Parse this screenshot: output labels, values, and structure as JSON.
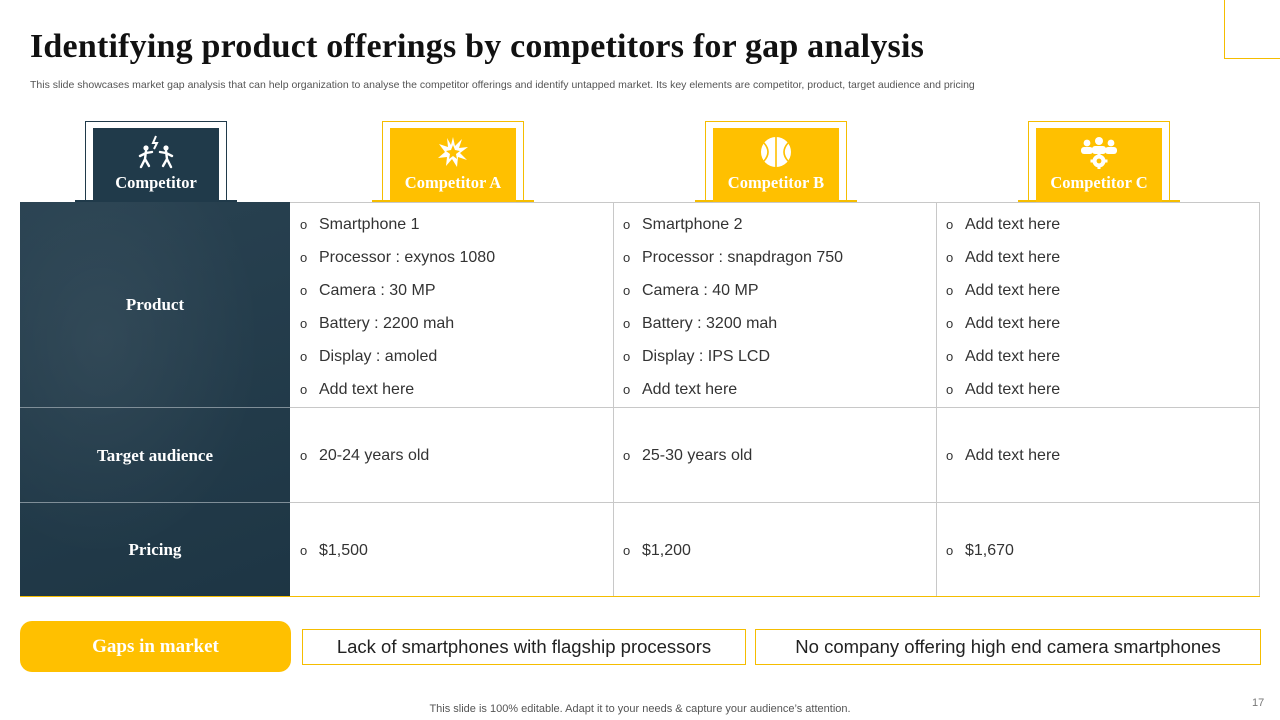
{
  "title": "Identifying product offerings by competitors  for gap analysis",
  "subtitle": "This slide showcases market gap analysis that can help organization to analyse the competitor offerings and identify untapped market. Its key elements are competitor, product, target audience and pricing",
  "headers": {
    "first": "Competitor",
    "a": "Competitor A",
    "b": "Competitor B",
    "c": "Competitor C"
  },
  "icons": {
    "first": "people-fighting-icon",
    "a": "splash-icon",
    "b": "basketball-icon",
    "c": "team-gear-icon"
  },
  "rows": {
    "product": "Product",
    "audience": "Target audience",
    "pricing": "Pricing"
  },
  "product": {
    "a": [
      "Smartphone 1",
      "Processor : exynos 1080",
      "Camera : 30 MP",
      "Battery : 2200 mah",
      "Display : amoled",
      "Add text here"
    ],
    "b": [
      "Smartphone 2",
      "Processor : snapdragon 750",
      "Camera : 40 MP",
      "Battery : 3200 mah",
      "Display : IPS LCD",
      "Add text here"
    ],
    "c": [
      "Add text here",
      "Add text here",
      "Add text here",
      "Add text here",
      "Add text here",
      "Add text here"
    ]
  },
  "audience": {
    "a": "20-24 years old",
    "b": "25-30 years old",
    "c": "Add text here"
  },
  "pricing": {
    "a": "$1,500",
    "b": "$1,200",
    "c": "$1,670"
  },
  "bullet_symbol": "o",
  "gaps": {
    "label": "Gaps in market",
    "items": [
      "Lack of smartphones with flagship processors",
      "No company offering high end camera smartphones"
    ]
  },
  "footer": "This slide is 100% editable. Adapt it to your needs & capture your audience’s attention.",
  "page_number": "17",
  "colors": {
    "accent": "#ffc000",
    "dark": "#203a4a"
  }
}
